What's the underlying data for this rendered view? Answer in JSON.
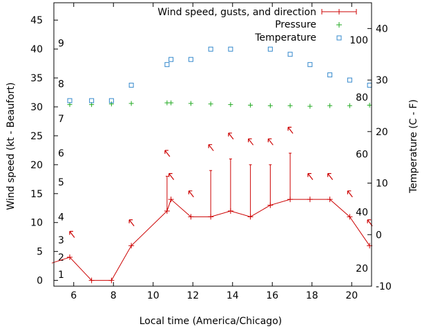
{
  "chart_data": {
    "type": "line",
    "xlabel": "Local time (America/Chicago)",
    "ylabel_left": "Wind speed (kt - Beaufort)",
    "ylabel_right": "Temperature (C - F)",
    "xlim": [
      5,
      21
    ],
    "ylim_left": [
      -1,
      48
    ],
    "ylim_right": [
      -10,
      45
    ],
    "x_ticks": [
      6,
      8,
      10,
      12,
      14,
      16,
      18,
      20
    ],
    "y_left_ticks": [
      0,
      5,
      10,
      15,
      20,
      25,
      30,
      35,
      40,
      45
    ],
    "y_right_ticks": [
      -10,
      0,
      10,
      20,
      30,
      40
    ],
    "beaufort_labels": [
      {
        "label": "1",
        "kt": 1
      },
      {
        "label": "2",
        "kt": 4
      },
      {
        "label": "3",
        "kt": 7
      },
      {
        "label": "4",
        "kt": 11
      },
      {
        "label": "5",
        "kt": 17
      },
      {
        "label": "6",
        "kt": 22
      },
      {
        "label": "7",
        "kt": 28
      },
      {
        "label": "8",
        "kt": 34
      },
      {
        "label": "9",
        "kt": 41
      }
    ],
    "fahrenheit_labels": [
      {
        "label": "20",
        "temp_c": -6.5
      },
      {
        "label": "40",
        "temp_c": 4.4
      },
      {
        "label": "60",
        "temp_c": 15.6
      },
      {
        "label": "80",
        "temp_c": 26.7
      },
      {
        "label": "100",
        "temp_c": 37.8
      }
    ],
    "legend_position": "top-right",
    "colors": {
      "wind": "#cc0000",
      "pressure": "#22aa22",
      "temperature": "#3388cc"
    },
    "series": [
      {
        "name": "Wind speed, gusts, and direction",
        "x": [
          4.9,
          5.8,
          6.9,
          7.9,
          8.9,
          10.7,
          10.9,
          11.9,
          12.9,
          13.9,
          14.9,
          15.9,
          16.9,
          17.9,
          18.9,
          19.9,
          20.9
        ],
        "speed": [
          3,
          4,
          0,
          0,
          6,
          12,
          14,
          11,
          11,
          12,
          11,
          13,
          14,
          14,
          14,
          11,
          6
        ],
        "gust": [
          null,
          null,
          null,
          null,
          null,
          18,
          null,
          null,
          19,
          21,
          20,
          20,
          22,
          null,
          null,
          null,
          null
        ],
        "arrows": [
          {
            "x": 5.9,
            "y": 8.0
          },
          {
            "x": 8.9,
            "y": 10.0
          },
          {
            "x": 10.7,
            "y": 22.0
          },
          {
            "x": 10.9,
            "y": 18.0
          },
          {
            "x": 11.9,
            "y": 15.0
          },
          {
            "x": 12.9,
            "y": 23.0
          },
          {
            "x": 13.9,
            "y": 25.0
          },
          {
            "x": 14.9,
            "y": 24.0
          },
          {
            "x": 15.9,
            "y": 24.0
          },
          {
            "x": 16.9,
            "y": 26.0
          },
          {
            "x": 17.9,
            "y": 18.0
          },
          {
            "x": 18.9,
            "y": 18.0
          },
          {
            "x": 19.9,
            "y": 15.0
          },
          {
            "x": 20.9,
            "y": 10.0
          }
        ]
      },
      {
        "name": "Pressure",
        "x": [
          5.8,
          6.9,
          7.9,
          8.9,
          10.7,
          10.9,
          11.9,
          12.9,
          13.9,
          14.9,
          15.9,
          16.9,
          17.9,
          18.9,
          19.9,
          20.9
        ],
        "y": [
          30.4,
          30.4,
          30.5,
          30.6,
          30.7,
          30.7,
          30.6,
          30.5,
          30.4,
          30.3,
          30.2,
          30.2,
          30.1,
          30.2,
          30.2,
          30.3
        ]
      },
      {
        "name": "Temperature",
        "x": [
          5.8,
          6.9,
          7.9,
          8.9,
          10.7,
          10.9,
          11.9,
          12.9,
          13.9,
          14.9,
          15.9,
          16.9,
          17.9,
          18.9,
          19.9,
          20.9
        ],
        "y": [
          26,
          26,
          26,
          29,
          33,
          34,
          34,
          36,
          36,
          null,
          36,
          35,
          33,
          31,
          30,
          29
        ]
      }
    ]
  }
}
